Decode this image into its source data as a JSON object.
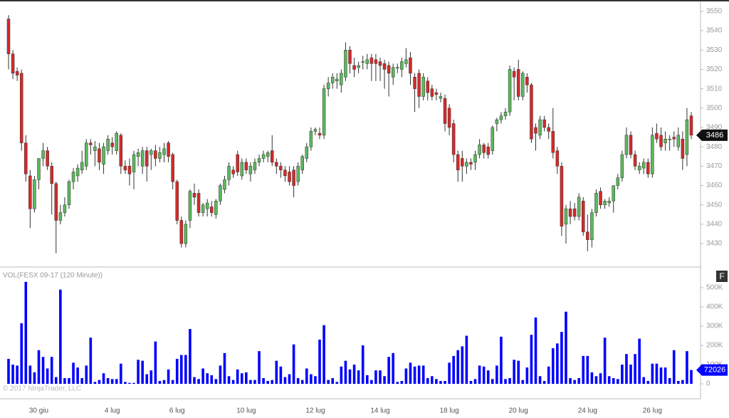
{
  "chart_data": [
    {
      "type": "candlestick",
      "categories": [
        null,
        null,
        null,
        null,
        null,
        null,
        null,
        "30 giu",
        null,
        null,
        null,
        null,
        null,
        null,
        null,
        null,
        null,
        null,
        null,
        null,
        null,
        null,
        null,
        null,
        "4 lug",
        null,
        null,
        null,
        null,
        null,
        null,
        null,
        null,
        null,
        null,
        null,
        null,
        null,
        null,
        "6 lug",
        null,
        null,
        null,
        null,
        null,
        null,
        null,
        null,
        null,
        null,
        null,
        null,
        null,
        null,
        null,
        "10 lug",
        null,
        null,
        null,
        null,
        null,
        null,
        null,
        null,
        null,
        null,
        null,
        null,
        null,
        null,
        null,
        "12 lug",
        null,
        null,
        null,
        null,
        null,
        null,
        null,
        null,
        null,
        null,
        null,
        null,
        null,
        null,
        "14 lug",
        null,
        null,
        null,
        null,
        null,
        null,
        null,
        null,
        null,
        null,
        null,
        null,
        null,
        null,
        null,
        "18 lug",
        null,
        null,
        null,
        null,
        null,
        null,
        null,
        null,
        null,
        null,
        null,
        null,
        null,
        null,
        null,
        "20 lug",
        null,
        null,
        null,
        null,
        null,
        null,
        null,
        null,
        null,
        null,
        null,
        null,
        null,
        null,
        null,
        "24 lug",
        null,
        null,
        null,
        null,
        null,
        null,
        null,
        null,
        null,
        null,
        null,
        null,
        null,
        null,
        "26 lug",
        null,
        null,
        null,
        null,
        null,
        null,
        null,
        null,
        null
      ],
      "open": [
        3546,
        3528,
        3519,
        3518,
        3482,
        3465,
        3448,
        3463,
        3474,
        3478,
        3470,
        3461,
        3442,
        3446,
        3450,
        3462,
        3465,
        3468,
        3470,
        3482,
        3478,
        3479,
        3471,
        3478,
        3482,
        3478,
        3486,
        3470,
        3470,
        3467,
        3475,
        3470,
        3478,
        3476,
        3478,
        3474,
        3476,
        3482,
        3476,
        3462,
        3442,
        3430,
        3442,
        3456,
        3456,
        3446,
        3448,
        3449,
        3445,
        3452,
        3458,
        3463,
        3468,
        3476,
        3465,
        3472,
        3466,
        3468,
        3472,
        3474,
        3475,
        3478,
        3472,
        3470,
        3468,
        3467,
        3468,
        3462,
        3468,
        3474,
        3480,
        3488,
        3487,
        3486,
        3510,
        3513,
        3514,
        3512,
        3516,
        3530,
        3522,
        3521,
        3524,
        3523,
        3526,
        3525,
        3524,
        3523,
        3522,
        3516,
        3521,
        3520,
        3523,
        3526,
        3516,
        3518,
        3506,
        3514,
        3510,
        3508,
        3505,
        3505,
        3500,
        3492,
        3476,
        3474,
        3470,
        3472,
        3472,
        3476,
        3481,
        3480,
        3478,
        3492,
        3494,
        3496,
        3498,
        3519,
        3520,
        3506,
        3516,
        3512,
        3490,
        3486,
        3494,
        3490,
        3488,
        3478,
        3470,
        3440,
        3448,
        3448,
        3444,
        3452,
        3436,
        3432,
        3446,
        3457,
        3450,
        3451,
        3452,
        3460,
        3464,
        3476,
        3486,
        3476,
        3468,
        3469,
        3472,
        3466,
        3487,
        3486,
        3482,
        3484,
        3485,
        3480,
        3484,
        3476,
        3496
      ],
      "high": [
        3548,
        3530,
        3521,
        3520,
        3486,
        3468,
        3465,
        3474,
        3482,
        3480,
        3472,
        3462,
        3450,
        3454,
        3463,
        3469,
        3471,
        3478,
        3484,
        3484,
        3483,
        3482,
        3482,
        3486,
        3485,
        3488,
        3487,
        3473,
        3474,
        3478,
        3479,
        3480,
        3480,
        3479,
        3481,
        3480,
        3482,
        3483,
        3477,
        3463,
        3444,
        3442,
        3458,
        3461,
        3458,
        3451,
        3453,
        3452,
        3453,
        3461,
        3465,
        3472,
        3470,
        3478,
        3474,
        3474,
        3472,
        3474,
        3476,
        3478,
        3478,
        3486,
        3474,
        3472,
        3470,
        3470,
        3470,
        3472,
        3476,
        3482,
        3490,
        3490,
        3490,
        3512,
        3516,
        3518,
        3518,
        3520,
        3534,
        3532,
        3526,
        3524,
        3527,
        3528,
        3528,
        3528,
        3526,
        3525,
        3524,
        3523,
        3523,
        3526,
        3531,
        3529,
        3518,
        3520,
        3518,
        3516,
        3512,
        3510,
        3508,
        3507,
        3502,
        3494,
        3478,
        3478,
        3474,
        3474,
        3478,
        3484,
        3482,
        3482,
        3491,
        3495,
        3498,
        3500,
        3522,
        3521,
        3525,
        3519,
        3518,
        3513,
        3492,
        3496,
        3496,
        3492,
        3500,
        3480,
        3472,
        3450,
        3452,
        3451,
        3456,
        3454,
        3445,
        3448,
        3458,
        3459,
        3453,
        3454,
        3460,
        3466,
        3478,
        3490,
        3488,
        3478,
        3472,
        3474,
        3474,
        3490,
        3492,
        3490,
        3488,
        3486,
        3488,
        3490,
        3488,
        3500,
        3498
      ],
      "low": [
        3520,
        3515,
        3514,
        3478,
        3462,
        3438,
        3446,
        3458,
        3470,
        3468,
        3445,
        3425,
        3440,
        3444,
        3448,
        3458,
        3462,
        3466,
        3468,
        3476,
        3470,
        3468,
        3466,
        3476,
        3476,
        3476,
        3466,
        3466,
        3460,
        3458,
        3470,
        3466,
        3462,
        3468,
        3470,
        3472,
        3472,
        3472,
        3458,
        3440,
        3428,
        3428,
        3438,
        3450,
        3444,
        3444,
        3444,
        3444,
        3443,
        3450,
        3456,
        3460,
        3464,
        3465,
        3463,
        3466,
        3462,
        3466,
        3470,
        3472,
        3472,
        3470,
        3466,
        3464,
        3462,
        3460,
        3454,
        3460,
        3466,
        3472,
        3478,
        3486,
        3484,
        3484,
        3506,
        3510,
        3510,
        3508,
        3514,
        3518,
        3516,
        3518,
        3520,
        3520,
        3514,
        3514,
        3514,
        3510,
        3506,
        3512,
        3518,
        3516,
        3521,
        3512,
        3498,
        3500,
        3504,
        3504,
        3504,
        3504,
        3503,
        3488,
        3486,
        3472,
        3462,
        3462,
        3466,
        3468,
        3468,
        3474,
        3474,
        3474,
        3476,
        3488,
        3492,
        3494,
        3496,
        3504,
        3504,
        3504,
        3508,
        3482,
        3478,
        3484,
        3488,
        3484,
        3474,
        3466,
        3434,
        3430,
        3440,
        3442,
        3442,
        3434,
        3426,
        3428,
        3444,
        3448,
        3448,
        3449,
        3446,
        3458,
        3462,
        3474,
        3474,
        3468,
        3466,
        3466,
        3464,
        3464,
        3482,
        3478,
        3478,
        3478,
        3480,
        3478,
        3468,
        3470,
        3484
      ],
      "close": [
        3528,
        3518,
        3517,
        3482,
        3466,
        3448,
        3463,
        3474,
        3478,
        3470,
        3461,
        3442,
        3446,
        3450,
        3462,
        3467,
        3469,
        3472,
        3482,
        3481,
        3480,
        3472,
        3480,
        3484,
        3480,
        3487,
        3470,
        3468,
        3466,
        3476,
        3477,
        3478,
        3470,
        3478,
        3474,
        3477,
        3479,
        3475,
        3462,
        3442,
        3430,
        3440,
        3457,
        3454,
        3446,
        3450,
        3451,
        3446,
        3452,
        3460,
        3463,
        3470,
        3466,
        3467,
        3472,
        3468,
        3470,
        3472,
        3474,
        3476,
        3477,
        3472,
        3470,
        3468,
        3465,
        3462,
        3460,
        3470,
        3475,
        3480,
        3488,
        3489,
        3486,
        3510,
        3513,
        3516,
        3515,
        3518,
        3530,
        3523,
        3520,
        3522,
        3524,
        3525,
        3523,
        3523,
        3522,
        3520,
        3518,
        3521,
        3521,
        3524,
        3525,
        3518,
        3510,
        3506,
        3516,
        3508,
        3506,
        3507,
        3506,
        3492,
        3490,
        3476,
        3468,
        3470,
        3472,
        3471,
        3476,
        3481,
        3477,
        3476,
        3490,
        3494,
        3496,
        3498,
        3520,
        3516,
        3506,
        3518,
        3512,
        3484,
        3487,
        3494,
        3490,
        3488,
        3477,
        3470,
        3439,
        3448,
        3444,
        3444,
        3454,
        3436,
        3432,
        3446,
        3456,
        3450,
        3452,
        3452,
        3460,
        3464,
        3476,
        3486,
        3476,
        3470,
        3470,
        3472,
        3466,
        3486,
        3484,
        3480,
        3484,
        3484,
        3484,
        3486,
        3474,
        3494,
        3486
      ],
      "up_color": "#5cb85c",
      "down_color": "#d42a2a",
      "ylim": [
        3419,
        3554
      ],
      "yticks": [
        3430,
        3440,
        3450,
        3460,
        3470,
        3480,
        3490,
        3500,
        3510,
        3520,
        3530,
        3540,
        3550
      ],
      "last_value": 3486
    },
    {
      "type": "bar",
      "title": "VOL(FESX 09-17 (120 Minute))",
      "values": [
        130000,
        100000,
        95000,
        315000,
        530000,
        95000,
        60000,
        175000,
        140000,
        80000,
        140000,
        35000,
        490000,
        30000,
        30000,
        110000,
        85000,
        30000,
        95000,
        240000,
        10000,
        20000,
        55000,
        30000,
        25000,
        25000,
        105000,
        10000,
        5000,
        5000,
        125000,
        120000,
        50000,
        70000,
        220000,
        15000,
        20000,
        75000,
        20000,
        130000,
        150000,
        150000,
        285000,
        35000,
        25000,
        80000,
        55000,
        45000,
        25000,
        95000,
        160000,
        40000,
        20000,
        75000,
        55000,
        60000,
        20000,
        20000,
        170000,
        30000,
        15000,
        20000,
        120000,
        90000,
        35000,
        50000,
        205000,
        30000,
        20000,
        80000,
        50000,
        40000,
        230000,
        305000,
        20000,
        30000,
        10000,
        90000,
        120000,
        75000,
        100000,
        70000,
        200000,
        45000,
        20000,
        70000,
        70000,
        40000,
        140000,
        160000,
        10000,
        15000,
        80000,
        110000,
        90000,
        95000,
        95000,
        30000,
        40000,
        25000,
        15000,
        15000,
        110000,
        145000,
        175000,
        195000,
        250000,
        15000,
        25000,
        95000,
        90000,
        70000,
        25000,
        95000,
        245000,
        25000,
        30000,
        125000,
        120000,
        20000,
        85000,
        255000,
        345000,
        40000,
        15000,
        90000,
        185000,
        210000,
        270000,
        375000,
        30000,
        20000,
        30000,
        145000,
        145000,
        60000,
        40000,
        55000,
        240000,
        40000,
        30000,
        25000,
        100000,
        155000,
        100000,
        155000,
        235000,
        35000,
        15000,
        105000,
        105000,
        85000,
        85000,
        30000,
        175000,
        15000,
        20000,
        170000,
        72026
      ],
      "color": "#0000ff",
      "ylim": [
        -59000,
        596000
      ],
      "yticks": [
        0,
        {
          "value": 100000,
          "label": "100K"
        },
        {
          "value": 200000,
          "label": "200K"
        },
        {
          "value": 300000,
          "label": "300K"
        },
        {
          "value": 400000,
          "label": "400K"
        },
        {
          "value": 500000,
          "label": "500K"
        }
      ],
      "last_value": 72026
    }
  ],
  "footer": "© 2017 NinjaTrader, LLC",
  "panel_button": "F"
}
